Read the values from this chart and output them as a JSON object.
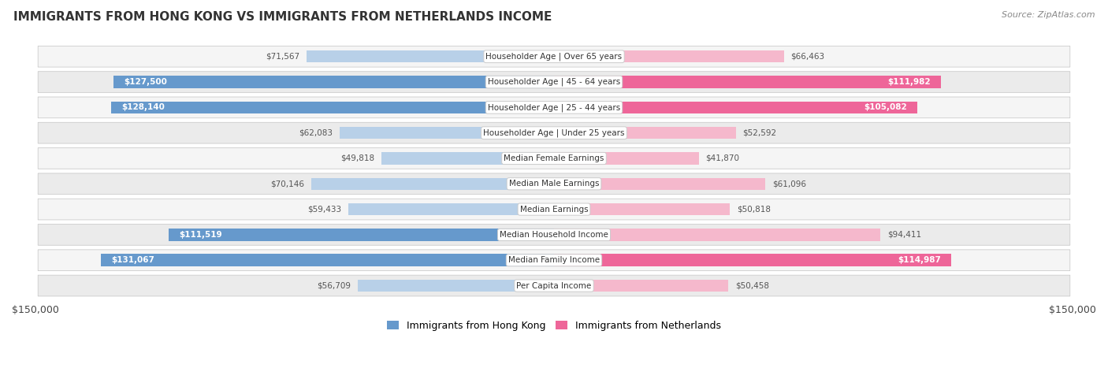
{
  "title": "IMMIGRANTS FROM HONG KONG VS IMMIGRANTS FROM NETHERLANDS INCOME",
  "source": "Source: ZipAtlas.com",
  "categories": [
    "Per Capita Income",
    "Median Family Income",
    "Median Household Income",
    "Median Earnings",
    "Median Male Earnings",
    "Median Female Earnings",
    "Householder Age | Under 25 years",
    "Householder Age | 25 - 44 years",
    "Householder Age | 45 - 64 years",
    "Householder Age | Over 65 years"
  ],
  "hong_kong_values": [
    56709,
    131067,
    111519,
    59433,
    70146,
    49818,
    62083,
    128140,
    127500,
    71567
  ],
  "netherlands_values": [
    50458,
    114987,
    94411,
    50818,
    61096,
    41870,
    52592,
    105082,
    111982,
    66463
  ],
  "hong_kong_labels": [
    "$56,709",
    "$131,067",
    "$111,519",
    "$59,433",
    "$70,146",
    "$49,818",
    "$62,083",
    "$128,140",
    "$127,500",
    "$71,567"
  ],
  "netherlands_labels": [
    "$50,458",
    "$114,987",
    "$94,411",
    "$50,818",
    "$61,096",
    "$41,870",
    "$52,592",
    "$105,082",
    "$111,982",
    "$66,463"
  ],
  "hk_light_color": "#b8d0e8",
  "nl_light_color": "#f5b8cc",
  "hk_dark_color": "#6699cc",
  "nl_dark_color": "#ee6699",
  "hk_threshold": 100000,
  "nl_threshold": 100000,
  "max_value": 150000,
  "legend_hk": "Immigrants from Hong Kong",
  "legend_nl": "Immigrants from Netherlands",
  "row_light_bg": "#f2f2f2",
  "row_dark_bg": "#e8e8e8",
  "row_border": "#cccccc"
}
